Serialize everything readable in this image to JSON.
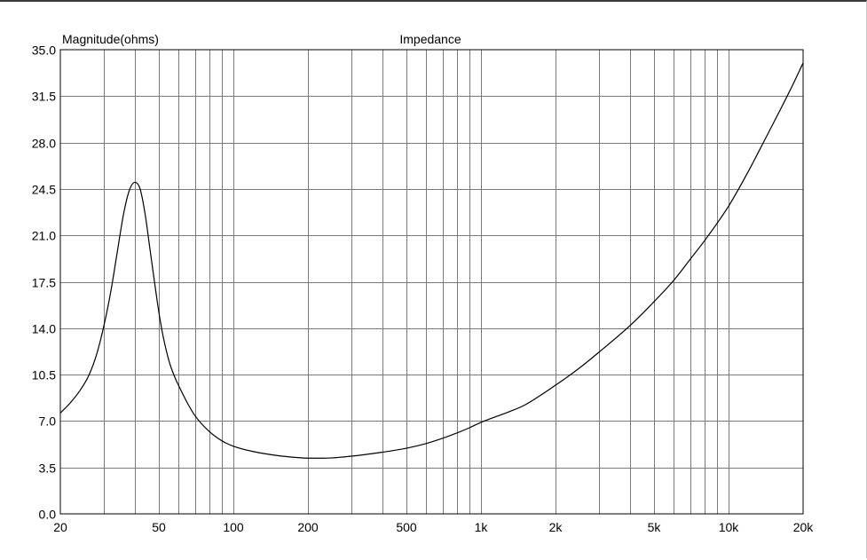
{
  "chart_data": {
    "type": "line",
    "title": "Impedance",
    "ylabel": "Magnitude(ohms)",
    "xlabel": "",
    "x_scale": "log",
    "xlim": [
      20,
      20000
    ],
    "ylim": [
      0,
      35
    ],
    "grid": true,
    "x_tick_labels": [
      {
        "value": 20,
        "label": "20"
      },
      {
        "value": 50,
        "label": "50"
      },
      {
        "value": 100,
        "label": "100"
      },
      {
        "value": 200,
        "label": "200"
      },
      {
        "value": 500,
        "label": "500"
      },
      {
        "value": 1000,
        "label": "1k"
      },
      {
        "value": 2000,
        "label": "2k"
      },
      {
        "value": 5000,
        "label": "5k"
      },
      {
        "value": 10000,
        "label": "10k"
      },
      {
        "value": 20000,
        "label": "20k"
      }
    ],
    "y_tick_labels": [
      "0.0",
      "3.5",
      "7.0",
      "10.5",
      "14.0",
      "17.5",
      "21.0",
      "24.5",
      "28.0",
      "31.5",
      "35.0"
    ],
    "series": [
      {
        "color": "#000000",
        "x": [
          20,
          22,
          24,
          26,
          28,
          30,
          32,
          34,
          36,
          38,
          40,
          42,
          44,
          46,
          48,
          50,
          52,
          55,
          58,
          60,
          65,
          70,
          80,
          90,
          100,
          120,
          150,
          180,
          200,
          230,
          250,
          300,
          350,
          400,
          500,
          600,
          700,
          800,
          900,
          1000,
          1100,
          1300,
          1500,
          2000,
          2500,
          3000,
          4000,
          5000,
          6000,
          7000,
          8000,
          10000,
          12000,
          14000,
          16000,
          18000,
          20000
        ],
        "y": [
          7.6,
          8.4,
          9.3,
          10.4,
          12.0,
          14.2,
          16.8,
          19.8,
          22.6,
          24.4,
          25.0,
          24.5,
          22.6,
          20.0,
          17.5,
          15.2,
          13.4,
          11.5,
          10.3,
          9.7,
          8.4,
          7.4,
          6.2,
          5.5,
          5.1,
          4.7,
          4.4,
          4.25,
          4.2,
          4.2,
          4.22,
          4.35,
          4.5,
          4.65,
          4.95,
          5.3,
          5.7,
          6.1,
          6.5,
          6.9,
          7.2,
          7.7,
          8.2,
          9.7,
          11.0,
          12.2,
          14.2,
          16.0,
          17.6,
          19.2,
          20.6,
          23.2,
          25.8,
          28.2,
          30.3,
          32.2,
          34.0
        ]
      }
    ]
  }
}
